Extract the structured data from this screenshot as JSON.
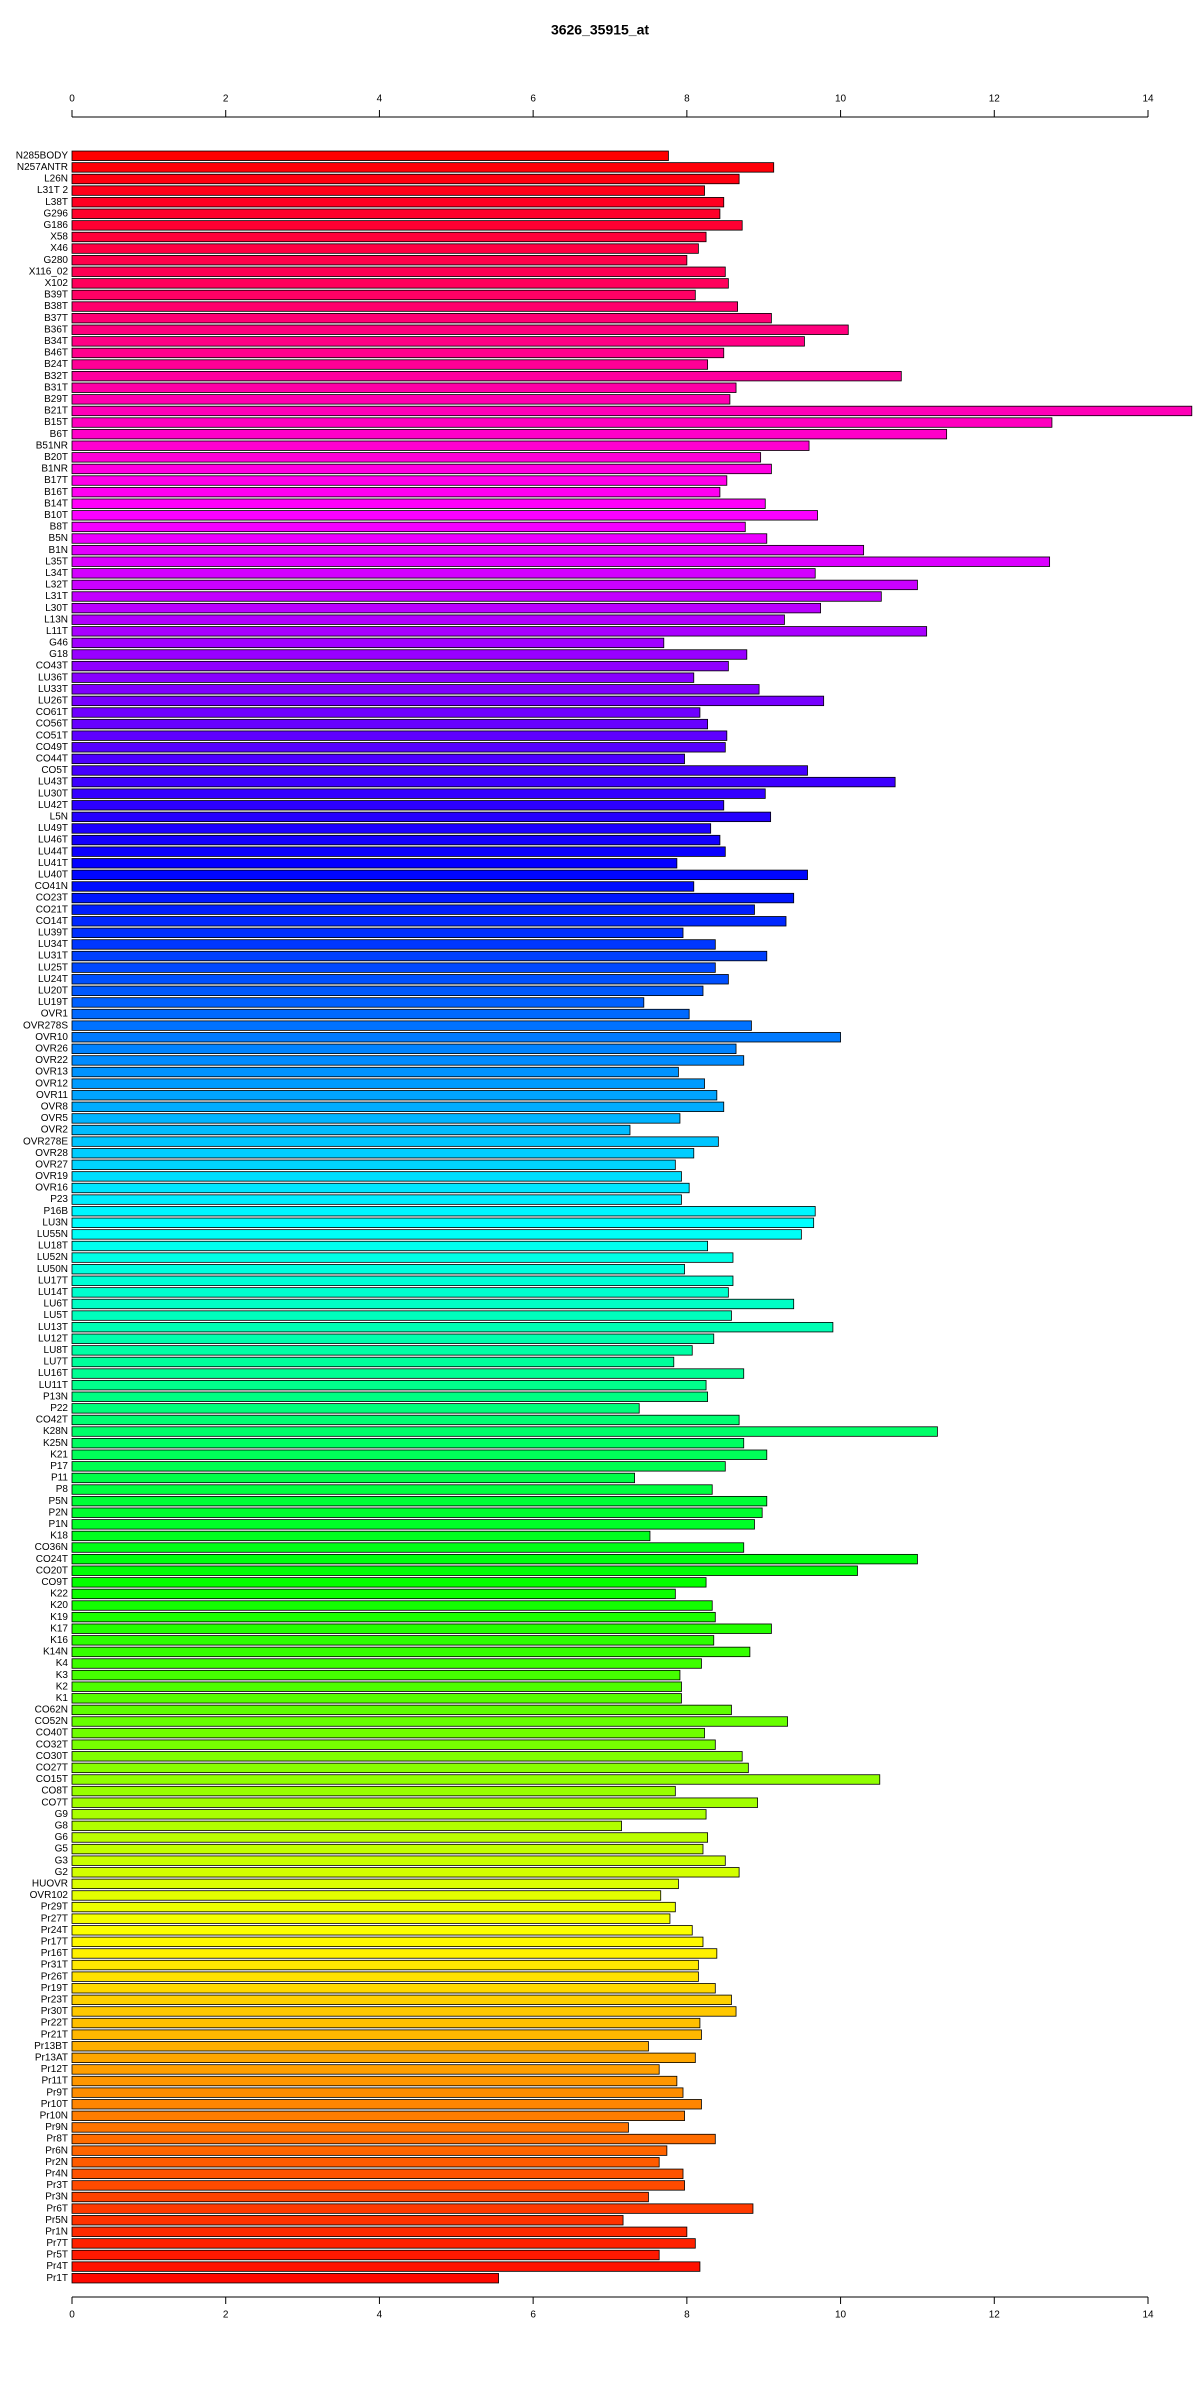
{
  "chart_data": {
    "type": "bar",
    "orientation": "horizontal",
    "title": "3626_35915_at",
    "categories": [
      "N285BODY",
      "N257ANTR",
      "L26N",
      "L31T 2",
      "L38T",
      "G296",
      "G186",
      "X58",
      "X46",
      "G280",
      "X116_02",
      "X102",
      "B39T",
      "B38T",
      "B37T",
      "B36T",
      "B34T",
      "B46T",
      "B24T",
      "B32T",
      "B31T",
      "B29T",
      "B21T",
      "B15T",
      "B6T",
      "B51NR",
      "B20T",
      "B1NR",
      "B17T",
      "B16T",
      "B14T",
      "B10T",
      "B8T",
      "B5N",
      "B1N",
      "L35T",
      "L34T",
      "L32T",
      "L31T",
      "L30T",
      "L13N",
      "L11T",
      "G46",
      "G18",
      "CO43T",
      "LU36T",
      "LU33T",
      "LU26T",
      "CO61T",
      "CO56T",
      "CO51T",
      "CO49T",
      "CO44T",
      "CO5T",
      "LU43T",
      "LU30T",
      "LU42T",
      "L5N",
      "LU49T",
      "LU46T",
      "LU44T",
      "LU41T",
      "LU40T",
      "CO41N",
      "CO23T",
      "CO21T",
      "CO14T",
      "LU39T",
      "LU34T",
      "LU31T",
      "LU25T",
      "LU24T",
      "LU20T",
      "LU19T",
      "OVR1",
      "OVR278S",
      "OVR10",
      "OVR26",
      "OVR22",
      "OVR13",
      "OVR12",
      "OVR11",
      "OVR8",
      "OVR5",
      "OVR2",
      "OVR278E",
      "OVR28",
      "OVR27",
      "OVR19",
      "OVR16",
      "P23",
      "P16B",
      "LU3N",
      "LU55N",
      "LU18T",
      "LU52N",
      "LU50N",
      "LU17T",
      "LU14T",
      "LU6T",
      "LU5T",
      "LU13T",
      "LU12T",
      "LU8T",
      "LU7T",
      "LU16T",
      "LU11T",
      "P13N",
      "P22",
      "CO42T",
      "K28N",
      "K25N",
      "K21",
      "P17",
      "P11",
      "P8",
      "P5N",
      "P2N",
      "P1N",
      "K18",
      "CO36N",
      "CO24T",
      "CO20T",
      "CO9T",
      "K22",
      "K20",
      "K19",
      "K17",
      "K16",
      "K14N",
      "K4",
      "K3",
      "K2",
      "K1",
      "CO62N",
      "CO52N",
      "CO40T",
      "CO32T",
      "CO30T",
      "CO27T",
      "CO15T",
      "CO8T",
      "CO7T",
      "G9",
      "G8",
      "G6",
      "G5",
      "G3",
      "G2",
      "HUOVR",
      "OVR102",
      "Pr29T",
      "Pr27T",
      "Pr24T",
      "Pr17T",
      "Pr16T",
      "Pr31T",
      "Pr26T",
      "Pr19T",
      "Pr23T",
      "Pr30T",
      "Pr22T",
      "Pr21T",
      "Pr13BT",
      "Pr13AT",
      "Pr12T",
      "Pr11T",
      "Pr9T",
      "Pr10T",
      "Pr10N",
      "Pr9N",
      "Pr8T",
      "Pr6N",
      "Pr2N",
      "Pr4N",
      "Pr3T",
      "Pr3N",
      "Pr6T",
      "Pr5N",
      "Pr1N",
      "Pr7T",
      "Pr5T",
      "Pr4T",
      "Pr1T"
    ],
    "values": [
      7.76,
      9.13,
      8.68,
      8.23,
      8.48,
      8.43,
      8.72,
      8.25,
      8.15,
      8.0,
      8.5,
      8.54,
      8.11,
      8.66,
      9.1,
      10.1,
      9.53,
      8.48,
      8.27,
      10.79,
      8.64,
      8.56,
      14.57,
      12.75,
      11.38,
      9.59,
      8.96,
      9.1,
      8.52,
      8.43,
      9.02,
      9.7,
      8.76,
      9.04,
      10.3,
      12.72,
      9.67,
      11.0,
      10.53,
      9.74,
      9.27,
      11.12,
      7.7,
      8.78,
      8.54,
      8.09,
      8.94,
      9.78,
      8.17,
      8.27,
      8.52,
      8.5,
      7.97,
      9.57,
      10.71,
      9.02,
      8.48,
      9.09,
      8.31,
      8.43,
      8.5,
      7.87,
      9.57,
      8.09,
      9.39,
      8.88,
      9.29,
      7.95,
      8.37,
      9.04,
      8.37,
      8.54,
      8.21,
      7.44,
      8.03,
      8.84,
      10.0,
      8.64,
      8.74,
      7.89,
      8.23,
      8.39,
      8.48,
      7.91,
      7.26,
      8.41,
      8.09,
      7.85,
      7.93,
      8.03,
      7.93,
      9.67,
      9.65,
      9.49,
      8.27,
      8.6,
      7.97,
      8.6,
      8.54,
      9.39,
      8.58,
      9.9,
      8.35,
      8.07,
      7.83,
      8.74,
      8.25,
      8.27,
      7.38,
      8.68,
      11.26,
      8.74,
      9.04,
      8.5,
      7.32,
      8.33,
      9.04,
      8.98,
      8.88,
      7.52,
      8.74,
      11.0,
      10.22,
      8.25,
      7.85,
      8.33,
      8.37,
      9.1,
      8.35,
      8.82,
      8.19,
      7.91,
      7.93,
      7.93,
      8.58,
      9.31,
      8.23,
      8.37,
      8.72,
      8.8,
      10.51,
      7.85,
      8.92,
      8.25,
      7.15,
      8.27,
      8.21,
      8.5,
      8.68,
      7.89,
      7.66,
      7.85,
      7.78,
      8.07,
      8.21,
      8.39,
      8.15,
      8.15,
      8.37,
      8.58,
      8.64,
      8.17,
      8.19,
      7.5,
      8.11,
      7.64,
      7.87,
      7.95,
      8.19,
      7.97,
      7.24,
      8.37,
      7.74,
      7.64,
      7.95,
      7.97,
      7.5,
      8.86,
      7.17,
      8.0,
      8.11,
      7.64,
      8.17,
      5.55
    ],
    "bar_color_hues": [
      360,
      0
    ],
    "xlim": [
      0,
      14
    ],
    "xticks": [
      0,
      2,
      4,
      6,
      8,
      10,
      12,
      14
    ]
  }
}
